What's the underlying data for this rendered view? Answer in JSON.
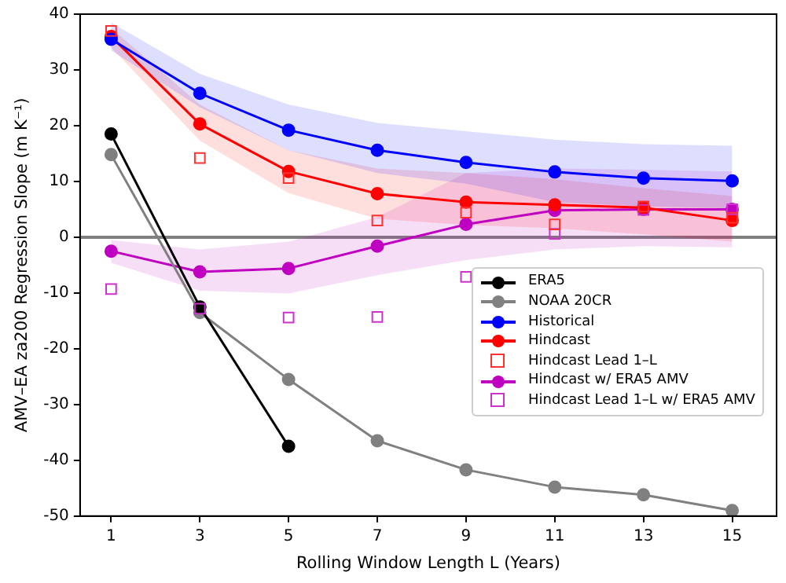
{
  "chart_data": {
    "type": "line",
    "xlabel": "Rolling Window Length L (Years)",
    "ylabel": "AMV–EA za200 Regression Slope (m K⁻¹)",
    "x": [
      1,
      3,
      5,
      7,
      9,
      11,
      13,
      15
    ],
    "xlim": [
      0.3,
      16.0
    ],
    "xticks": [
      1,
      3,
      5,
      7,
      9,
      11,
      13,
      15
    ],
    "ylim": [
      -50,
      40
    ],
    "yticks": [
      -50,
      -40,
      -30,
      -20,
      -10,
      0,
      10,
      20,
      30,
      40
    ],
    "grid": false,
    "legend": "lower right",
    "line_style": "solid",
    "ref_lines": [
      {
        "axis": "y",
        "value": 0,
        "color": "#808080"
      }
    ],
    "series": [
      {
        "name": "ERA5",
        "marker": "circle",
        "color": "#000000",
        "values": [
          18.5,
          -12.5,
          -37.5,
          null,
          null,
          null,
          null,
          null
        ]
      },
      {
        "name": "NOAA 20CR",
        "marker": "circle",
        "color": "#808080",
        "values": [
          14.8,
          -13.5,
          -25.5,
          -36.5,
          -41.7,
          -44.8,
          -46.2,
          -49
        ]
      },
      {
        "name": "Historical",
        "marker": "circle",
        "color": "#0000ff",
        "values": [
          35.5,
          25.8,
          19.2,
          15.6,
          13.4,
          11.7,
          10.6,
          10.1
        ],
        "lower": [
          33.5,
          23.3,
          15.6,
          11.5,
          9.6,
          6.3,
          5.5,
          5.2
        ],
        "upper": [
          38.5,
          29.3,
          23.8,
          20.5,
          19,
          17.5,
          16.7,
          16.4
        ]
      },
      {
        "name": "Hindcast",
        "marker": "circle",
        "color": "#ff0000",
        "values": [
          36,
          20.3,
          11.8,
          7.8,
          6.3,
          5.8,
          5.3,
          3
        ],
        "lower": [
          34,
          17.3,
          7.9,
          3.3,
          2.2,
          1.6,
          0.5,
          -0.8
        ],
        "upper": [
          37.5,
          23.8,
          15.6,
          12.3,
          11.5,
          10.4,
          8.8,
          7.4
        ]
      },
      {
        "name": "Hindcast Lead 1–L",
        "type": "scatter",
        "marker": "square",
        "color": "#ff3030",
        "values": [
          37,
          14.2,
          10.6,
          3,
          4.4,
          2.3,
          5.5,
          3.5
        ]
      },
      {
        "name": "Hindcast w/ ERA5 AMV",
        "marker": "circle",
        "color": "#c000c0",
        "values": [
          -2.5,
          -6.2,
          -5.6,
          -1.6,
          2.3,
          4.8,
          5,
          5
        ],
        "lower": [
          -4.6,
          -9.6,
          -10.1,
          -6.8,
          -4.1,
          -2.2,
          -1.6,
          -1.8
        ],
        "upper": [
          -0.5,
          -2.2,
          -0.8,
          3.6,
          11.5,
          12.3,
          12.1,
          11.8
        ]
      },
      {
        "name": "Hindcast Lead 1–L w/ ERA5 AMV",
        "type": "scatter",
        "marker": "square",
        "color": "#cc33cc",
        "values": [
          -9.3,
          -12.8,
          -14.4,
          -14.3,
          -7.1,
          0.6,
          4.9,
          5
        ]
      }
    ]
  }
}
